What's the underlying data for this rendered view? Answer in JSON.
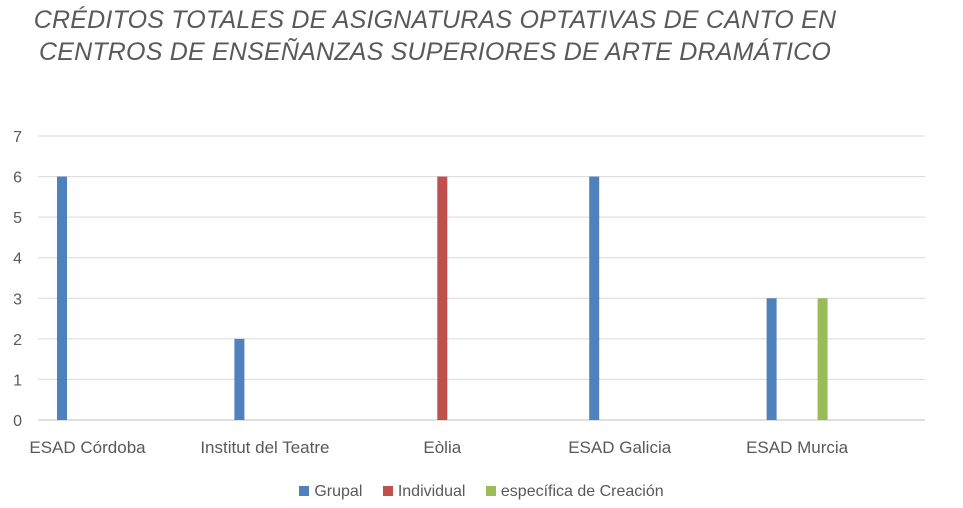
{
  "chart_data": {
    "type": "bar",
    "title_lines": [
      "CRÉDITOS TOTALES DE ASIGNATURAS OPTATIVAS DE CANTO EN",
      "CENTROS DE ENSEÑANZAS SUPERIORES DE ARTE DRAMÁTICO"
    ],
    "categories": [
      "ESAD Córdoba",
      "Institut del Teatre",
      "Eòlia",
      "ESAD Galicia",
      "ESAD Murcia"
    ],
    "series": [
      {
        "name": "Grupal",
        "color": "#4F81BD",
        "values": [
          6,
          2,
          0,
          6,
          3
        ]
      },
      {
        "name": "Individual",
        "color": "#C0504D",
        "values": [
          0,
          0,
          6,
          0,
          0
        ]
      },
      {
        "name": "específica de Creación",
        "color": "#9BBB59",
        "values": [
          0,
          0,
          0,
          0,
          3
        ]
      }
    ],
    "ylim": [
      0,
      7
    ],
    "yticks": [
      "0",
      "1",
      "2",
      "3",
      "4",
      "5",
      "6",
      "7"
    ],
    "grid": true,
    "legend_position": "bottom"
  }
}
